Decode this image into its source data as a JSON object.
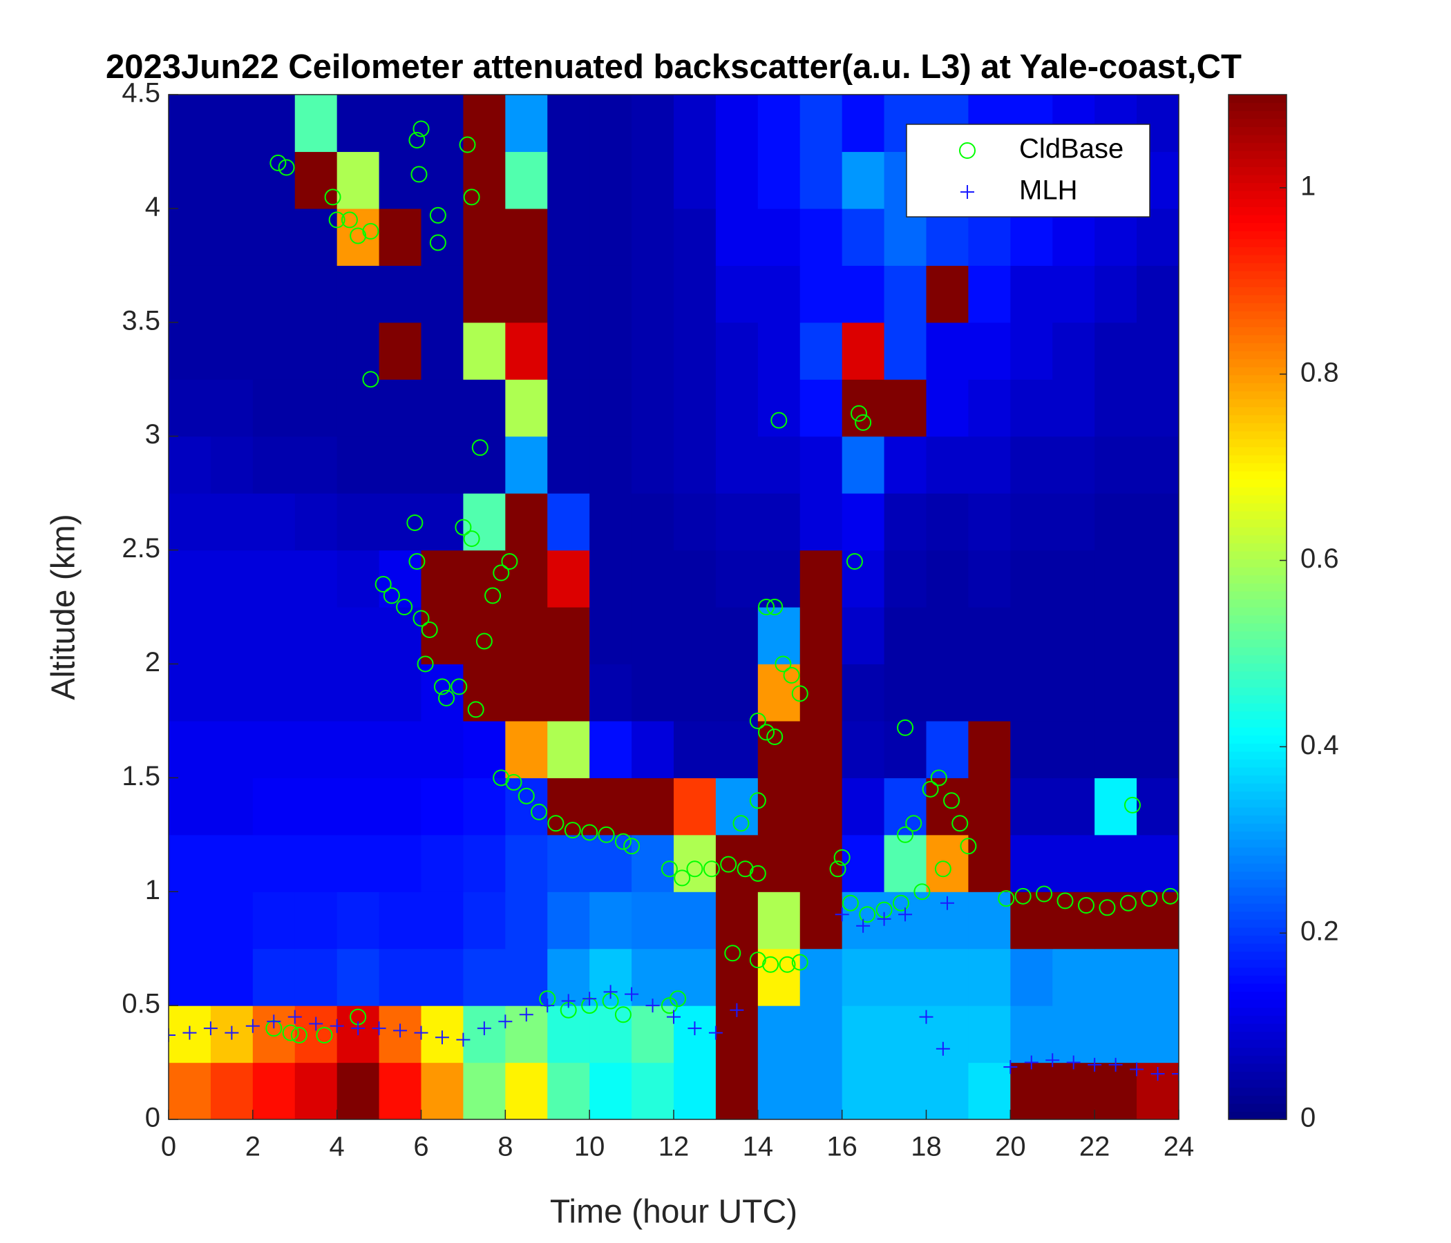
{
  "chart_data": {
    "type": "heatmap",
    "title": "2023Jun22 Ceilometer attenuated backscatter(a.u. L3) at Yale-coast,CT",
    "x_label": "Time (hour UTC)",
    "y_label": "Altitude (km)",
    "xlim": [
      0,
      24
    ],
    "ylim": [
      0,
      4.5
    ],
    "xticks": [
      0,
      2,
      4,
      6,
      8,
      10,
      12,
      14,
      16,
      18,
      20,
      22,
      24
    ],
    "yticks": [
      0,
      0.5,
      1,
      1.5,
      2,
      2.5,
      3,
      3.5,
      4,
      4.5
    ],
    "colormap": "jet",
    "clim": [
      0,
      1.1
    ],
    "cticks": [
      0,
      0.2,
      0.4,
      0.6,
      0.8,
      1
    ],
    "legend": "northeast",
    "x_bins": [
      0,
      1,
      2,
      3,
      4,
      5,
      6,
      7,
      8,
      9,
      10,
      11,
      12,
      13,
      14,
      15,
      16,
      17,
      18,
      19,
      20,
      21,
      22,
      23,
      24
    ],
    "y_bins": [
      0,
      0.25,
      0.5,
      0.75,
      1,
      1.25,
      1.5,
      1.75,
      2,
      2.25,
      2.5,
      2.75,
      3,
      3.25,
      3.5,
      3.75,
      4,
      4.25,
      4.5
    ],
    "z": [
      [
        0.85,
        0.9,
        0.95,
        1.0,
        1.1,
        0.95,
        0.8,
        0.55,
        0.7,
        0.5,
        0.42,
        0.45,
        0.4,
        1.1,
        0.3,
        0.3,
        0.35,
        0.35,
        0.35,
        0.38,
        1.1,
        1.1,
        1.1,
        1.05
      ],
      [
        0.7,
        0.75,
        0.85,
        0.9,
        1.0,
        0.85,
        0.7,
        0.5,
        0.55,
        0.45,
        0.45,
        0.5,
        0.4,
        1.1,
        0.3,
        0.3,
        0.35,
        0.35,
        0.35,
        0.35,
        0.3,
        0.3,
        0.3,
        0.3
      ],
      [
        0.15,
        0.15,
        0.18,
        0.18,
        0.2,
        0.18,
        0.18,
        0.2,
        0.2,
        0.3,
        0.35,
        0.3,
        0.3,
        1.1,
        0.7,
        0.3,
        0.33,
        0.33,
        0.33,
        0.33,
        0.28,
        0.3,
        0.3,
        0.3
      ],
      [
        0.15,
        0.15,
        0.16,
        0.16,
        0.17,
        0.16,
        0.16,
        0.18,
        0.2,
        0.25,
        0.28,
        0.27,
        0.27,
        1.1,
        0.6,
        1.1,
        0.3,
        0.3,
        0.3,
        0.3,
        1.1,
        1.1,
        1.1,
        1.1
      ],
      [
        0.15,
        0.15,
        0.15,
        0.15,
        0.15,
        0.15,
        0.16,
        0.17,
        0.2,
        0.22,
        0.22,
        0.25,
        0.6,
        1.1,
        1.1,
        1.1,
        0.15,
        0.5,
        0.8,
        1.1,
        0.1,
        0.1,
        0.1,
        0.1
      ],
      [
        0.12,
        0.12,
        0.13,
        0.13,
        0.13,
        0.13,
        0.14,
        0.15,
        0.18,
        1.1,
        1.1,
        1.1,
        0.9,
        0.3,
        1.1,
        1.1,
        0.1,
        0.2,
        1.1,
        1.1,
        0.06,
        0.06,
        0.4,
        0.06
      ],
      [
        0.12,
        0.12,
        0.12,
        0.12,
        0.12,
        0.12,
        0.12,
        0.13,
        0.8,
        0.6,
        0.15,
        0.1,
        0.05,
        0.05,
        1.1,
        1.1,
        0.06,
        0.05,
        0.2,
        1.1,
        0.04,
        0.04,
        0.04,
        0.04
      ],
      [
        0.1,
        0.1,
        0.1,
        0.1,
        0.1,
        0.1,
        0.12,
        1.1,
        1.1,
        1.1,
        0.05,
        0.04,
        0.04,
        0.04,
        0.8,
        1.1,
        0.05,
        0.04,
        0.04,
        0.04,
        0.04,
        0.04,
        0.04,
        0.04
      ],
      [
        0.1,
        0.1,
        0.1,
        0.1,
        0.1,
        0.1,
        1.1,
        1.1,
        1.1,
        1.1,
        0.04,
        0.04,
        0.04,
        0.04,
        0.3,
        1.1,
        0.08,
        0.04,
        0.04,
        0.04,
        0.04,
        0.04,
        0.04,
        0.04
      ],
      [
        0.1,
        0.1,
        0.1,
        0.1,
        0.09,
        0.12,
        1.1,
        1.1,
        1.1,
        1.0,
        0.04,
        0.04,
        0.04,
        0.05,
        0.05,
        1.1,
        0.1,
        0.05,
        0.04,
        0.05,
        0.04,
        0.04,
        0.04,
        0.04
      ],
      [
        0.08,
        0.08,
        0.08,
        0.07,
        0.06,
        0.06,
        0.06,
        0.5,
        1.1,
        0.2,
        0.04,
        0.04,
        0.05,
        0.06,
        0.06,
        0.1,
        0.12,
        0.06,
        0.05,
        0.06,
        0.05,
        0.05,
        0.04,
        0.04
      ],
      [
        0.07,
        0.06,
        0.05,
        0.05,
        0.04,
        0.04,
        0.04,
        0.04,
        0.3,
        0.04,
        0.04,
        0.05,
        0.06,
        0.08,
        0.08,
        0.1,
        0.25,
        0.1,
        0.08,
        0.08,
        0.06,
        0.06,
        0.05,
        0.05
      ],
      [
        0.05,
        0.05,
        0.04,
        0.04,
        0.04,
        0.04,
        0.04,
        0.04,
        0.6,
        0.04,
        0.04,
        0.05,
        0.06,
        0.08,
        0.1,
        0.15,
        1.1,
        1.1,
        0.12,
        0.1,
        0.08,
        0.08,
        0.06,
        0.06
      ],
      [
        0.04,
        0.04,
        0.04,
        0.04,
        0.04,
        1.1,
        0.04,
        0.6,
        1.0,
        0.04,
        0.04,
        0.05,
        0.06,
        0.08,
        0.1,
        0.2,
        1.0,
        0.2,
        0.12,
        0.12,
        0.1,
        0.08,
        0.06,
        0.06
      ],
      [
        0.04,
        0.04,
        0.04,
        0.04,
        0.04,
        0.04,
        0.04,
        1.1,
        1.1,
        0.04,
        0.04,
        0.05,
        0.06,
        0.1,
        0.1,
        0.15,
        0.15,
        0.2,
        1.1,
        0.15,
        0.1,
        0.1,
        0.08,
        0.06
      ],
      [
        0.04,
        0.04,
        0.04,
        0.04,
        0.8,
        1.1,
        0.04,
        1.1,
        1.1,
        0.04,
        0.04,
        0.05,
        0.06,
        0.12,
        0.12,
        0.15,
        0.2,
        0.25,
        0.2,
        0.18,
        0.15,
        0.12,
        0.1,
        0.08
      ],
      [
        0.04,
        0.04,
        0.04,
        1.1,
        0.6,
        0.04,
        0.04,
        1.1,
        0.5,
        0.04,
        0.04,
        0.05,
        0.08,
        0.12,
        0.15,
        0.2,
        0.3,
        0.25,
        0.2,
        0.2,
        0.15,
        0.15,
        0.1,
        0.1
      ],
      [
        0.04,
        0.04,
        0.04,
        0.5,
        0.04,
        0.04,
        0.04,
        1.1,
        0.3,
        0.04,
        0.04,
        0.05,
        0.08,
        0.12,
        0.15,
        0.2,
        0.15,
        0.2,
        0.2,
        0.15,
        0.15,
        0.12,
        0.1,
        0.08
      ]
    ],
    "series": [
      {
        "name": "CldBase",
        "color": "#00ff00",
        "marker": "circle",
        "x": [
          2.6,
          2.8,
          3.9,
          4.0,
          4.3,
          4.5,
          4.8,
          6.0,
          5.9,
          5.95,
          6.4,
          6.4,
          7.2,
          7.1,
          4.8,
          7.4,
          14.5,
          16.4,
          16.5,
          5.1,
          5.3,
          5.6,
          5.85,
          5.9,
          6.0,
          6.2,
          6.1,
          6.5,
          6.6,
          6.9,
          7.0,
          7.2,
          7.3,
          7.5,
          7.7,
          7.9,
          8.1,
          7.9,
          8.2,
          8.5,
          8.8,
          9.2,
          9.6,
          10.0,
          10.4,
          10.8,
          11.0,
          11.9,
          12.2,
          12.5,
          12.9,
          13.3,
          13.7,
          14.0,
          13.6,
          14.0,
          14.0,
          14.2,
          14.4,
          14.2,
          14.4,
          14.6,
          14.8,
          15.0,
          13.4,
          14.0,
          14.3,
          14.7,
          15.0,
          15.9,
          16.0,
          16.2,
          16.3,
          16.6,
          17.0,
          17.4,
          17.5,
          17.7,
          17.5,
          17.9,
          18.1,
          18.3,
          18.6,
          18.8,
          19.0,
          18.4,
          19.9,
          20.3,
          20.8,
          21.3,
          21.8,
          22.3,
          22.8,
          22.9,
          23.3,
          23.8,
          2.5,
          2.9,
          3.1,
          3.7,
          4.5,
          9.0,
          9.5,
          10.0,
          10.5,
          10.8,
          11.9,
          12.1
        ],
        "values": [
          4.2,
          4.18,
          4.05,
          3.95,
          3.95,
          3.88,
          3.9,
          4.35,
          4.3,
          4.15,
          3.97,
          3.85,
          4.05,
          4.28,
          3.25,
          2.95,
          3.07,
          3.1,
          3.06,
          2.35,
          2.3,
          2.25,
          2.62,
          2.45,
          2.2,
          2.15,
          2.0,
          1.9,
          1.85,
          1.9,
          2.6,
          2.55,
          1.8,
          2.1,
          2.3,
          2.4,
          2.45,
          1.5,
          1.48,
          1.42,
          1.35,
          1.3,
          1.27,
          1.26,
          1.25,
          1.22,
          1.2,
          1.1,
          1.06,
          1.1,
          1.1,
          1.12,
          1.1,
          1.08,
          1.3,
          1.4,
          1.75,
          1.7,
          1.68,
          2.25,
          2.25,
          2.0,
          1.95,
          1.87,
          0.73,
          0.7,
          0.68,
          0.68,
          0.69,
          1.1,
          1.15,
          0.95,
          2.45,
          0.9,
          0.92,
          0.95,
          1.25,
          1.3,
          1.72,
          1.0,
          1.45,
          1.5,
          1.4,
          1.3,
          1.2,
          1.1,
          0.97,
          0.98,
          0.99,
          0.96,
          0.94,
          0.93,
          0.95,
          1.38,
          0.97,
          0.98,
          0.4,
          0.38,
          0.37,
          0.37,
          0.45,
          0.53,
          0.48,
          0.5,
          0.52,
          0.46,
          0.5,
          0.53
        ]
      },
      {
        "name": "MLH",
        "color": "#1a1aff",
        "marker": "plus",
        "x": [
          0,
          0.5,
          1,
          1.5,
          2,
          2.5,
          3,
          3.5,
          4,
          4.5,
          5,
          5.5,
          6,
          6.5,
          7,
          7.5,
          8,
          8.5,
          9,
          9.5,
          10,
          10.5,
          11,
          11.5,
          12,
          12.5,
          13,
          13.5,
          16,
          16.5,
          17,
          17.5,
          18,
          18.4,
          18.5,
          20,
          20.5,
          21,
          21.5,
          22,
          22.5,
          23,
          23.5,
          24
        ],
        "values": [
          0.37,
          0.38,
          0.4,
          0.38,
          0.41,
          0.43,
          0.45,
          0.42,
          0.41,
          0.4,
          0.4,
          0.39,
          0.38,
          0.36,
          0.35,
          0.4,
          0.43,
          0.46,
          0.5,
          0.52,
          0.53,
          0.56,
          0.55,
          0.5,
          0.45,
          0.4,
          0.38,
          0.48,
          0.9,
          0.85,
          0.88,
          0.9,
          0.45,
          0.31,
          0.95,
          0.23,
          0.25,
          0.26,
          0.25,
          0.24,
          0.24,
          0.22,
          0.2,
          0.2
        ]
      }
    ]
  }
}
